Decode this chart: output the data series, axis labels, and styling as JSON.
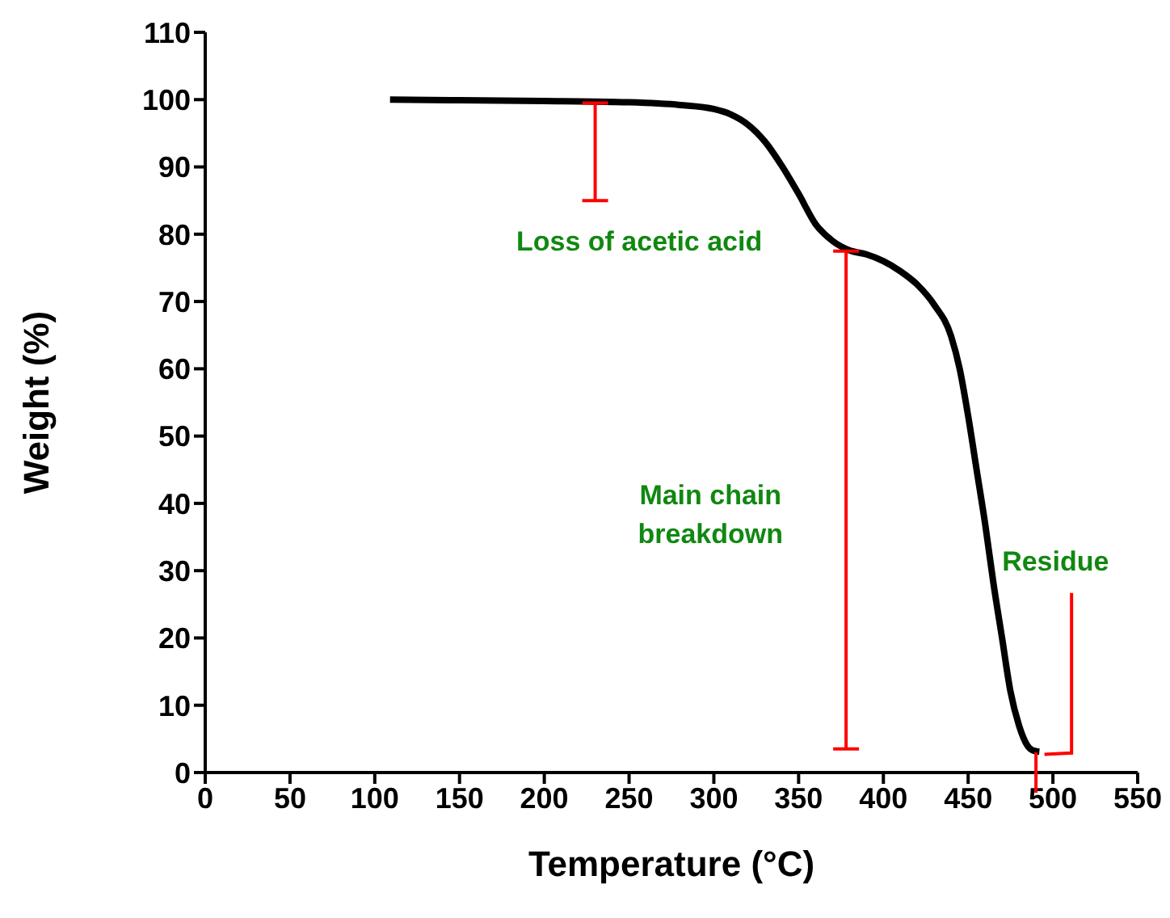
{
  "chart_data": {
    "type": "line",
    "xlabel": "Temperature (°C)",
    "ylabel": "Weight (%)",
    "x": [
      109,
      150,
      200,
      250,
      280,
      300,
      310,
      320,
      330,
      340,
      350,
      360,
      370,
      380,
      390,
      400,
      410,
      420,
      430,
      440,
      445,
      450,
      455,
      460,
      465,
      470,
      475,
      480,
      485,
      488,
      492
    ],
    "series": [
      {
        "color": "#000000",
        "values": [
          100,
          99.9,
          99.8,
          99.6,
          99.2,
          98.6,
          97.8,
          96.3,
          93.8,
          90.2,
          86,
          81.5,
          79,
          77.6,
          77,
          76,
          74.5,
          72.5,
          69.5,
          64.8,
          60,
          53,
          45,
          37,
          28,
          20,
          12,
          7,
          4,
          3.3,
          3.1
        ]
      }
    ],
    "xlim": [
      0,
      550
    ],
    "xticks": [
      0,
      50,
      100,
      150,
      200,
      250,
      300,
      350,
      400,
      450,
      500,
      550
    ],
    "ylim": [
      0,
      110
    ],
    "yticks": [
      0,
      10,
      20,
      30,
      40,
      50,
      60,
      70,
      80,
      90,
      100,
      110
    ],
    "marker": "none",
    "line_style": "solid",
    "annotations": [
      "Loss of acetic acid",
      "Main chain breakdown",
      {
        "text": "Residue",
        "x": 492,
        "y": 3.1
      }
    ]
  }
}
